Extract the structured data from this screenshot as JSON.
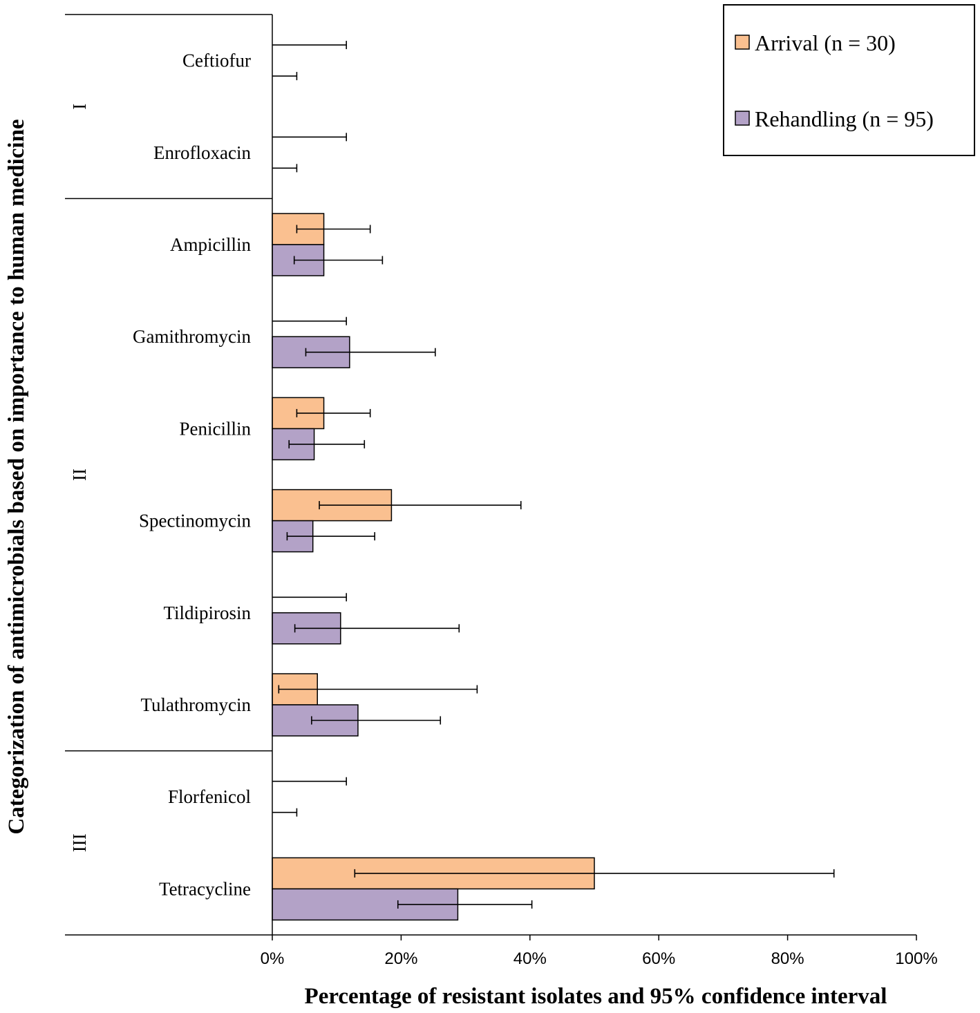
{
  "chart_data": {
    "type": "bar",
    "orientation": "horizontal",
    "title": "",
    "xlabel": "Percentage of resistant isolates and 95% confidence interval",
    "ylabel": "Categorization of antimicrobials based on importance to human medicine",
    "xlim": [
      0,
      100
    ],
    "x_ticks": [
      "0%",
      "20%",
      "40%",
      "60%",
      "80%",
      "100%"
    ],
    "x_tick_values": [
      0,
      20,
      40,
      60,
      80,
      100
    ],
    "categories": [
      "Ceftiofur",
      "Enrofloxacin",
      "Ampicillin",
      "Gamithromycin",
      "Penicillin",
      "Spectinomycin",
      "Tildipirosin",
      "Tulathromycin",
      "Florfenicol",
      "Tetracycline"
    ],
    "groups": [
      {
        "label": "I",
        "categories": [
          "Ceftiofur",
          "Enrofloxacin"
        ]
      },
      {
        "label": "II",
        "categories": [
          "Ampicillin",
          "Gamithromycin",
          "Penicillin",
          "Spectinomycin",
          "Tildipirosin",
          "Tulathromycin"
        ]
      },
      {
        "label": "III",
        "categories": [
          "Florfenicol",
          "Tetracycline"
        ]
      }
    ],
    "series": [
      {
        "name": "Arrival (n = 30)",
        "color": "#FAC090",
        "values": [
          0,
          0,
          8.0,
          0,
          8.0,
          18.5,
          0,
          7.0,
          0,
          50.0
        ],
        "ci_low": [
          0,
          0,
          3.8,
          0,
          3.8,
          7.3,
          0,
          1.0,
          0,
          12.8
        ],
        "ci_high": [
          11.5,
          11.5,
          15.2,
          11.5,
          15.2,
          38.6,
          11.5,
          31.8,
          11.5,
          87.2
        ]
      },
      {
        "name": "Rehandling (n = 95)",
        "color": "#B3A2C7",
        "values": [
          0,
          0,
          8.0,
          12.0,
          6.5,
          6.3,
          10.6,
          13.3,
          0,
          28.8
        ],
        "ci_low": [
          0,
          0,
          3.4,
          5.2,
          2.6,
          2.3,
          3.5,
          6.1,
          0,
          19.5
        ],
        "ci_high": [
          3.8,
          3.8,
          17.1,
          25.3,
          14.3,
          15.9,
          29.0,
          26.1,
          3.8,
          40.3
        ]
      }
    ],
    "legend_position": "top-right",
    "grid": false
  }
}
